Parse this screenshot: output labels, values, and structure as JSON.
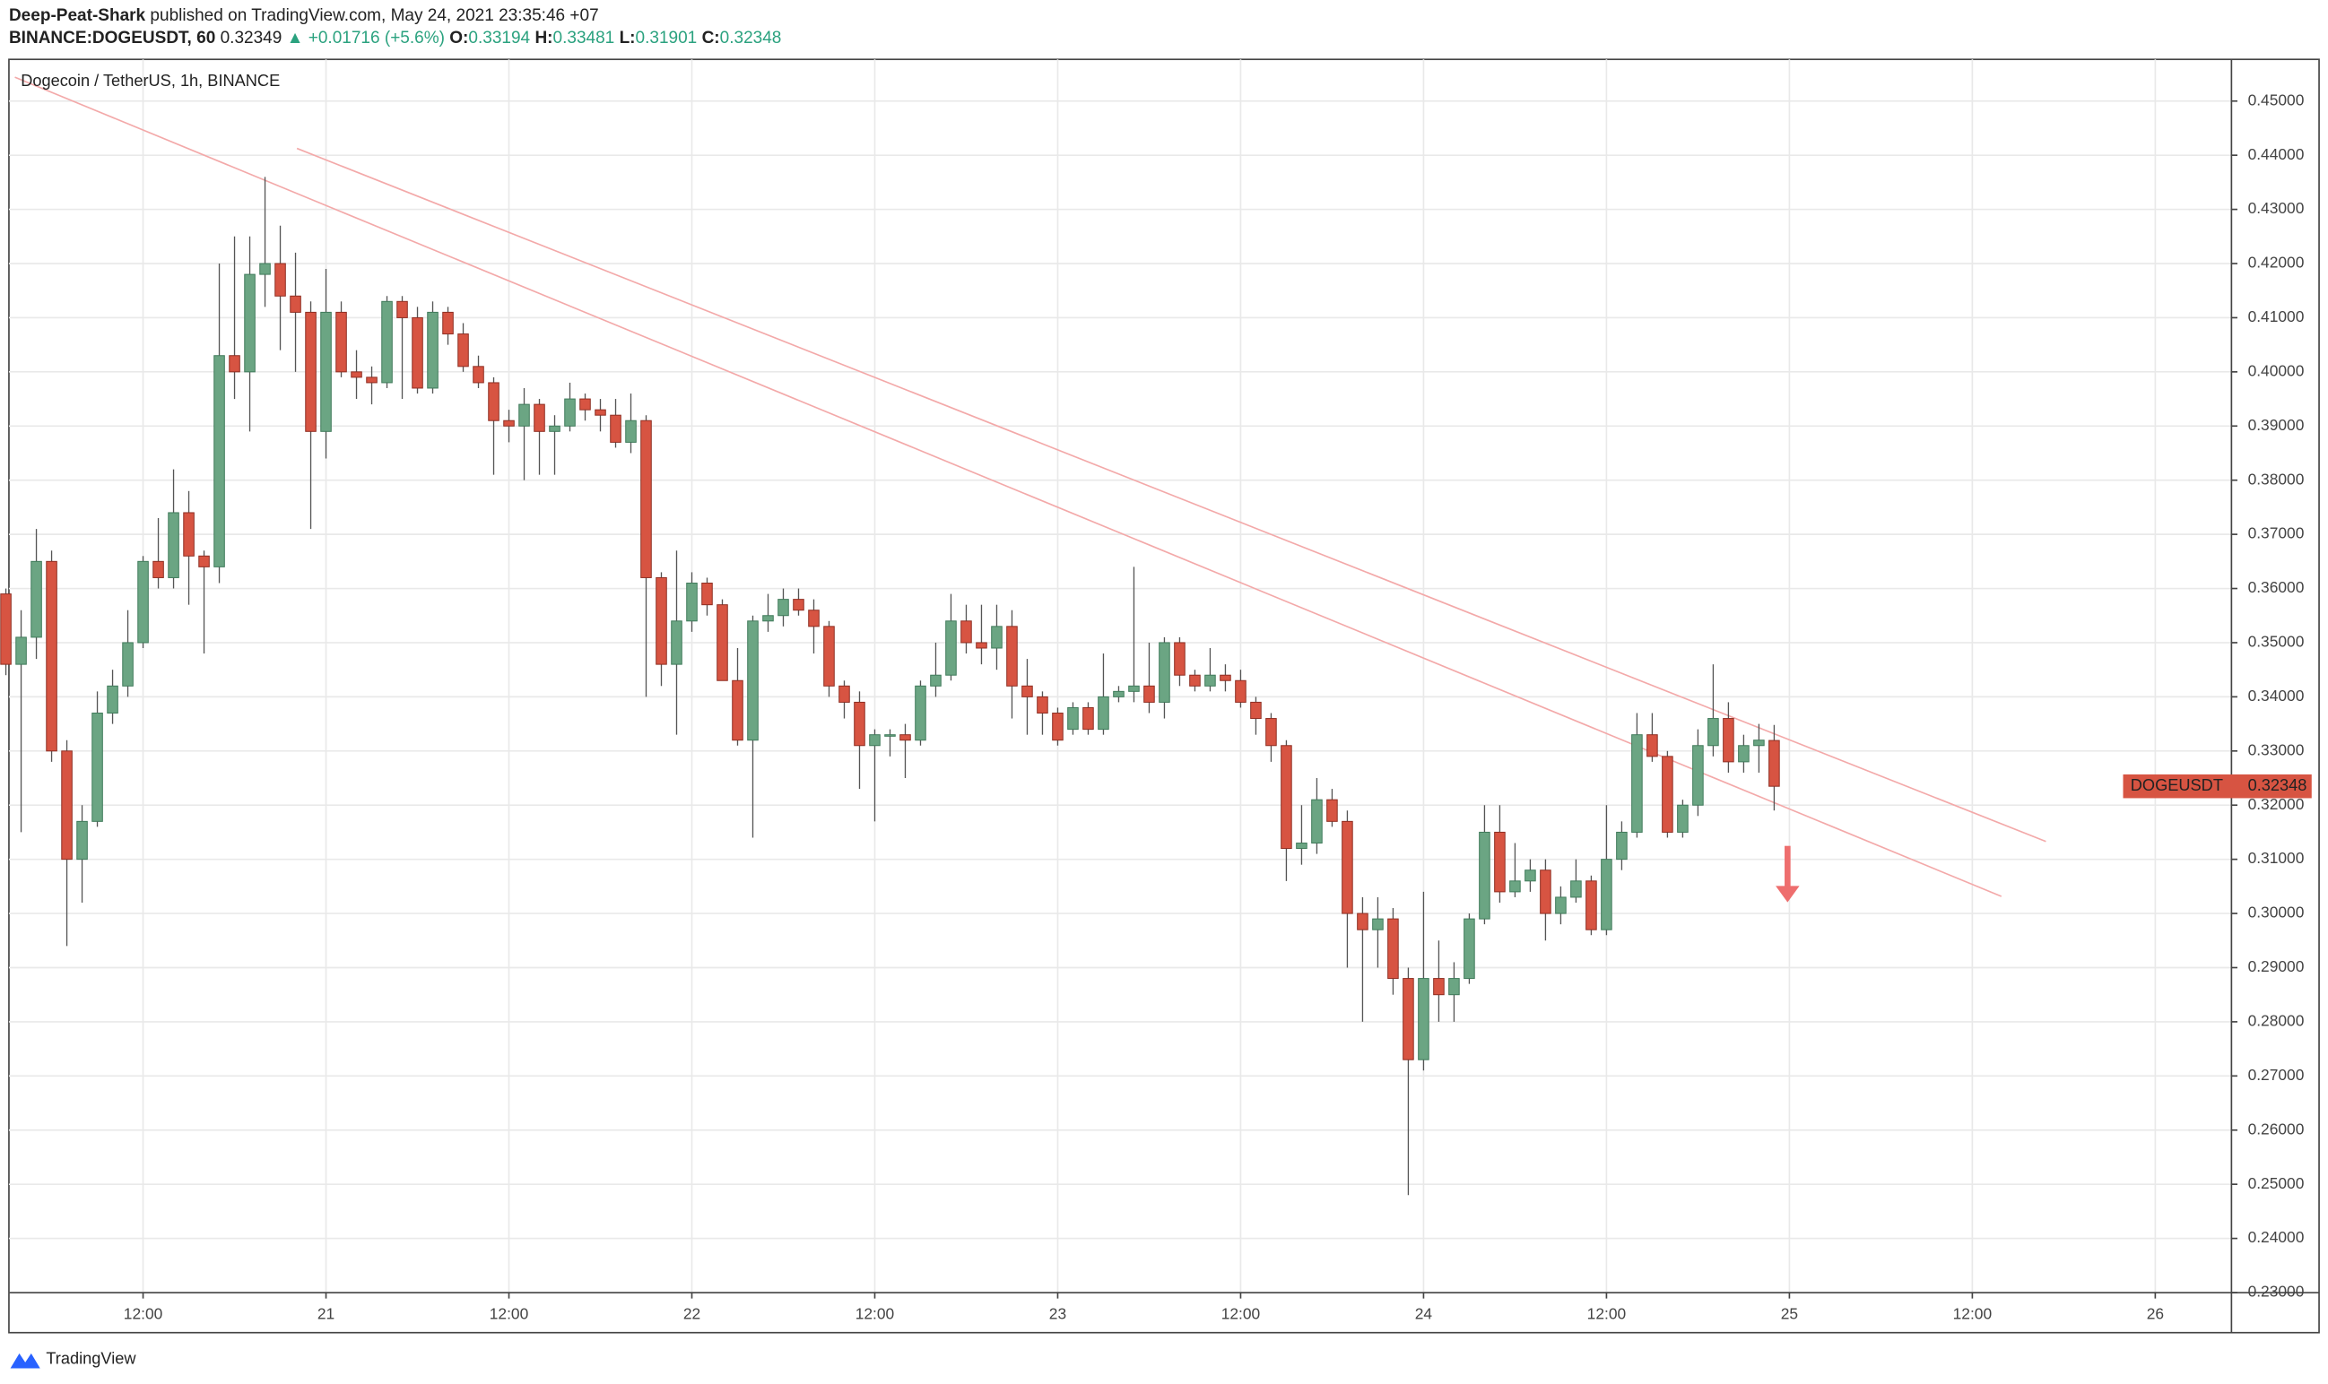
{
  "header": {
    "author": "Deep-Peat-Shark",
    "published": "published on TradingView.com, May 24, 2021 23:35:46 +07",
    "symbol": "BINANCE:DOGEUSDT, 60",
    "last": 0.32349,
    "change": "▲ +0.01716 (+5.6%)",
    "o_label": "O:",
    "o": 0.33194,
    "h_label": "H:",
    "h": 0.33481,
    "l_label": "L:",
    "l": 0.31901,
    "c_label": "C:",
    "c": 0.32348
  },
  "footer": {
    "brand": "TradingView"
  },
  "chart_data": {
    "type": "candlestick",
    "title": "Dogecoin / TetherUS, 1h, BINANCE",
    "up_color": "#6ba583",
    "down_color": "#d75442",
    "grid": true,
    "price_label": {
      "symbol": "DOGEUSDT",
      "value": 0.32348
    },
    "xlim": [
      3.2,
      149
    ],
    "ylim": [
      0.23,
      0.4577
    ],
    "xticks": [
      {
        "value": 12,
        "label": "12:00"
      },
      {
        "value": 24,
        "label": "21"
      },
      {
        "value": 36,
        "label": "12:00"
      },
      {
        "value": 48,
        "label": "22"
      },
      {
        "value": 60,
        "label": "12:00"
      },
      {
        "value": 72,
        "label": "23"
      },
      {
        "value": 84,
        "label": "12:00"
      },
      {
        "value": 96,
        "label": "24"
      },
      {
        "value": 108,
        "label": "12:00"
      },
      {
        "value": 120,
        "label": "25"
      },
      {
        "value": 132,
        "label": "12:00"
      },
      {
        "value": 144,
        "label": "26"
      }
    ],
    "yticks": [
      {
        "value": 0.23,
        "label": "0.23000"
      },
      {
        "value": 0.24,
        "label": "0.24000"
      },
      {
        "value": 0.25,
        "label": "0.25000"
      },
      {
        "value": 0.26,
        "label": "0.26000"
      },
      {
        "value": 0.27,
        "label": "0.27000"
      },
      {
        "value": 0.28,
        "label": "0.28000"
      },
      {
        "value": 0.29,
        "label": "0.29000"
      },
      {
        "value": 0.3,
        "label": "0.30000"
      },
      {
        "value": 0.31,
        "label": "0.31000"
      },
      {
        "value": 0.32,
        "label": "0.32000"
      },
      {
        "value": 0.33,
        "label": "0.33000"
      },
      {
        "value": 0.34,
        "label": "0.34000"
      },
      {
        "value": 0.35,
        "label": "0.35000"
      },
      {
        "value": 0.36,
        "label": "0.36000"
      },
      {
        "value": 0.37,
        "label": "0.37000"
      },
      {
        "value": 0.38,
        "label": "0.38000"
      },
      {
        "value": 0.39,
        "label": "0.39000"
      },
      {
        "value": 0.4,
        "label": "0.40000"
      },
      {
        "value": 0.41,
        "label": "0.41000"
      },
      {
        "value": 0.42,
        "label": "0.42000"
      },
      {
        "value": 0.43,
        "label": "0.43000"
      },
      {
        "value": 0.44,
        "label": "0.44000"
      },
      {
        "value": 0.45,
        "label": "0.45000"
      }
    ],
    "x": [
      3,
      4,
      5,
      6,
      7,
      8,
      9,
      10,
      11,
      12,
      13,
      14,
      15,
      16,
      17,
      18,
      19,
      20,
      21,
      22,
      23,
      24,
      25,
      26,
      27,
      28,
      29,
      30,
      31,
      32,
      33,
      34,
      35,
      36,
      37,
      38,
      39,
      40,
      41,
      42,
      43,
      44,
      45,
      46,
      47,
      48,
      49,
      50,
      51,
      52,
      53,
      54,
      55,
      56,
      57,
      58,
      59,
      60,
      61,
      62,
      63,
      64,
      65,
      66,
      67,
      68,
      69,
      70,
      71,
      72,
      73,
      74,
      75,
      76,
      77,
      78,
      79,
      80,
      81,
      82,
      83,
      84,
      85,
      86,
      87,
      88,
      89,
      90,
      91,
      92,
      93,
      94,
      95,
      96,
      97,
      98,
      99,
      100,
      101,
      102,
      103,
      104,
      105,
      106,
      107,
      108,
      109,
      110,
      111,
      112,
      113,
      114,
      115,
      116,
      117,
      118,
      119
    ],
    "open": [
      0.359,
      0.346,
      0.351,
      0.365,
      0.33,
      0.31,
      0.317,
      0.337,
      0.342,
      0.35,
      0.365,
      0.362,
      0.374,
      0.366,
      0.364,
      0.403,
      0.4,
      0.418,
      0.42,
      0.414,
      0.411,
      0.389,
      0.411,
      0.4,
      0.399,
      0.398,
      0.413,
      0.41,
      0.397,
      0.411,
      0.407,
      0.401,
      0.398,
      0.391,
      0.39,
      0.394,
      0.389,
      0.39,
      0.395,
      0.393,
      0.392,
      0.387,
      0.391,
      0.362,
      0.346,
      0.354,
      0.361,
      0.357,
      0.343,
      0.332,
      0.354,
      0.355,
      0.358,
      0.356,
      0.353,
      0.342,
      0.339,
      0.331,
      0.333,
      0.333,
      0.332,
      0.342,
      0.344,
      0.354,
      0.35,
      0.349,
      0.353,
      0.342,
      0.34,
      0.337,
      0.334,
      0.338,
      0.334,
      0.34,
      0.341,
      0.342,
      0.339,
      0.35,
      0.344,
      0.342,
      0.344,
      0.343,
      0.339,
      0.336,
      0.331,
      0.312,
      0.313,
      0.321,
      0.317,
      0.3,
      0.297,
      0.299,
      0.288,
      0.273,
      0.288,
      0.285,
      0.288,
      0.299,
      0.315,
      0.304,
      0.306,
      0.308,
      0.3,
      0.303,
      0.306,
      0.297,
      0.31,
      0.315,
      0.333,
      0.329,
      0.315,
      0.32,
      0.331,
      0.336,
      0.328,
      0.331,
      0.33194
    ],
    "high": [
      0.36,
      0.356,
      0.371,
      0.367,
      0.332,
      0.32,
      0.341,
      0.345,
      0.356,
      0.366,
      0.373,
      0.382,
      0.378,
      0.367,
      0.42,
      0.425,
      0.425,
      0.436,
      0.427,
      0.422,
      0.413,
      0.419,
      0.413,
      0.404,
      0.401,
      0.414,
      0.414,
      0.412,
      0.413,
      0.412,
      0.409,
      0.403,
      0.399,
      0.393,
      0.397,
      0.395,
      0.392,
      0.398,
      0.396,
      0.395,
      0.395,
      0.396,
      0.392,
      0.363,
      0.367,
      0.363,
      0.362,
      0.358,
      0.349,
      0.355,
      0.359,
      0.36,
      0.36,
      0.358,
      0.354,
      0.343,
      0.341,
      0.334,
      0.334,
      0.335,
      0.343,
      0.35,
      0.359,
      0.357,
      0.357,
      0.357,
      0.356,
      0.347,
      0.341,
      0.338,
      0.339,
      0.339,
      0.348,
      0.342,
      0.364,
      0.35,
      0.351,
      0.351,
      0.345,
      0.349,
      0.346,
      0.345,
      0.34,
      0.337,
      0.332,
      0.32,
      0.325,
      0.323,
      0.319,
      0.303,
      0.303,
      0.301,
      0.29,
      0.304,
      0.295,
      0.291,
      0.3,
      0.32,
      0.32,
      0.313,
      0.31,
      0.31,
      0.305,
      0.31,
      0.307,
      0.32,
      0.317,
      0.337,
      0.337,
      0.33,
      0.321,
      0.334,
      0.346,
      0.339,
      0.333,
      0.335,
      0.33481
    ],
    "low": [
      0.344,
      0.315,
      0.347,
      0.328,
      0.294,
      0.302,
      0.316,
      0.335,
      0.34,
      0.349,
      0.36,
      0.36,
      0.357,
      0.348,
      0.361,
      0.395,
      0.389,
      0.412,
      0.404,
      0.4,
      0.371,
      0.384,
      0.399,
      0.395,
      0.394,
      0.397,
      0.395,
      0.396,
      0.396,
      0.405,
      0.4,
      0.397,
      0.381,
      0.387,
      0.38,
      0.381,
      0.381,
      0.389,
      0.391,
      0.389,
      0.386,
      0.385,
      0.34,
      0.342,
      0.333,
      0.352,
      0.355,
      0.343,
      0.331,
      0.314,
      0.352,
      0.353,
      0.355,
      0.348,
      0.34,
      0.336,
      0.323,
      0.317,
      0.329,
      0.325,
      0.331,
      0.34,
      0.343,
      0.348,
      0.346,
      0.345,
      0.336,
      0.333,
      0.333,
      0.331,
      0.333,
      0.333,
      0.333,
      0.339,
      0.339,
      0.337,
      0.336,
      0.342,
      0.341,
      0.341,
      0.341,
      0.338,
      0.333,
      0.328,
      0.306,
      0.309,
      0.311,
      0.316,
      0.29,
      0.28,
      0.29,
      0.285,
      0.248,
      0.271,
      0.28,
      0.28,
      0.287,
      0.298,
      0.302,
      0.303,
      0.304,
      0.295,
      0.298,
      0.302,
      0.296,
      0.296,
      0.308,
      0.314,
      0.328,
      0.314,
      0.314,
      0.318,
      0.329,
      0.326,
      0.326,
      0.326,
      0.31901
    ],
    "close": [
      0.346,
      0.351,
      0.365,
      0.33,
      0.31,
      0.317,
      0.337,
      0.342,
      0.35,
      0.365,
      0.362,
      0.374,
      0.366,
      0.364,
      0.403,
      0.4,
      0.418,
      0.42,
      0.414,
      0.411,
      0.389,
      0.411,
      0.4,
      0.399,
      0.398,
      0.413,
      0.41,
      0.397,
      0.411,
      0.407,
      0.401,
      0.398,
      0.391,
      0.39,
      0.394,
      0.389,
      0.39,
      0.395,
      0.393,
      0.392,
      0.387,
      0.391,
      0.362,
      0.346,
      0.354,
      0.361,
      0.357,
      0.343,
      0.332,
      0.354,
      0.355,
      0.358,
      0.356,
      0.353,
      0.342,
      0.339,
      0.331,
      0.333,
      0.333,
      0.332,
      0.342,
      0.344,
      0.354,
      0.35,
      0.349,
      0.353,
      0.342,
      0.34,
      0.337,
      0.332,
      0.338,
      0.334,
      0.34,
      0.341,
      0.342,
      0.339,
      0.35,
      0.344,
      0.342,
      0.344,
      0.343,
      0.339,
      0.336,
      0.331,
      0.312,
      0.313,
      0.321,
      0.317,
      0.3,
      0.297,
      0.299,
      0.288,
      0.273,
      0.288,
      0.285,
      0.288,
      0.299,
      0.315,
      0.304,
      0.306,
      0.308,
      0.3,
      0.303,
      0.306,
      0.297,
      0.31,
      0.315,
      0.333,
      0.329,
      0.315,
      0.32,
      0.331,
      0.336,
      0.328,
      0.331,
      0.332,
      0.32348
    ]
  }
}
